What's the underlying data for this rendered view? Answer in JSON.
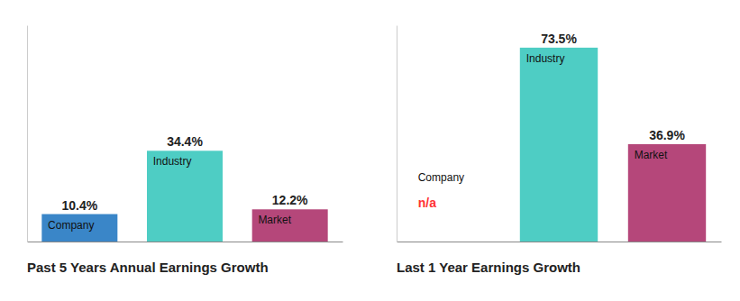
{
  "chart_data": [
    {
      "type": "bar",
      "title": "Past 5 Years Annual Earnings Growth",
      "categories": [
        "Company",
        "Industry",
        "Market"
      ],
      "values": [
        10.4,
        34.4,
        12.2
      ],
      "value_labels": [
        "10.4%",
        "34.4%",
        "12.2%"
      ],
      "colors": [
        "#3a86c8",
        "#4ecdc4",
        "#b5477a"
      ],
      "ylim": [
        0,
        82
      ],
      "grid": false,
      "data_labels": true,
      "tick_labels": "x"
    },
    {
      "type": "bar",
      "title": "Last 1 Year Earnings Growth",
      "categories": [
        "Company",
        "Industry",
        "Market"
      ],
      "values": [
        null,
        73.5,
        36.9
      ],
      "value_labels": [
        "n/a",
        "73.5%",
        "36.9%"
      ],
      "colors": [
        "#ff3333",
        "#4ecdc4",
        "#b5477a"
      ],
      "ylim": [
        0,
        82
      ],
      "grid": false,
      "data_labels": true,
      "tick_labels": "x"
    }
  ]
}
